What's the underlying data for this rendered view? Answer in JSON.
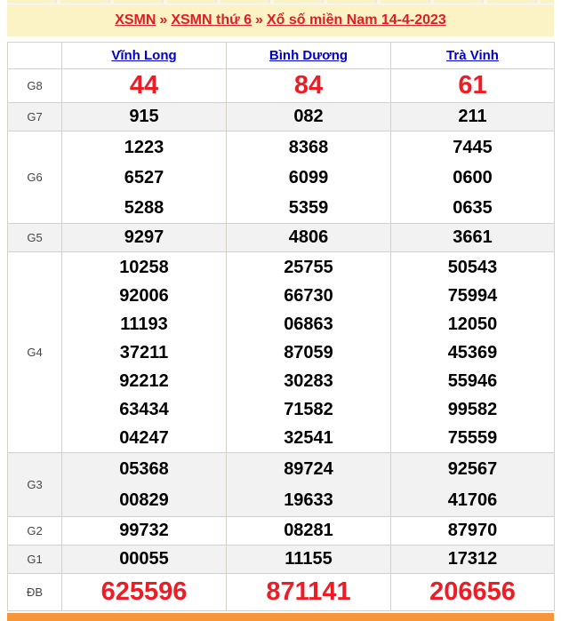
{
  "breadcrumb": {
    "separator": "»",
    "items": [
      {
        "label": "XSMN"
      },
      {
        "label": "XSMN thứ 6"
      },
      {
        "label": "Xổ số miền Nam 14-4-2023"
      }
    ]
  },
  "table": {
    "corner_label": "",
    "provinces": [
      "Vĩnh Long",
      "Bình Dương",
      "Trà Vinh"
    ],
    "rows": [
      {
        "prize": "G8",
        "highlight": true,
        "shaded": false,
        "values": [
          [
            "44"
          ],
          [
            "84"
          ],
          [
            "61"
          ]
        ]
      },
      {
        "prize": "G7",
        "highlight": false,
        "shaded": true,
        "values": [
          [
            "915"
          ],
          [
            "082"
          ],
          [
            "211"
          ]
        ]
      },
      {
        "prize": "G6",
        "highlight": false,
        "shaded": false,
        "values": [
          [
            "1223",
            "6527",
            "5288"
          ],
          [
            "8368",
            "6099",
            "5359"
          ],
          [
            "7445",
            "0600",
            "0635"
          ]
        ]
      },
      {
        "prize": "G5",
        "highlight": false,
        "shaded": true,
        "values": [
          [
            "9297"
          ],
          [
            "4806"
          ],
          [
            "3661"
          ]
        ]
      },
      {
        "prize": "G4",
        "highlight": false,
        "shaded": false,
        "values": [
          [
            "10258",
            "92006",
            "11193",
            "37211",
            "92212",
            "63434",
            "04247"
          ],
          [
            "25755",
            "66730",
            "06863",
            "87059",
            "30283",
            "71582",
            "32541"
          ],
          [
            "50543",
            "75994",
            "12050",
            "45369",
            "55946",
            "99582",
            "75559"
          ]
        ]
      },
      {
        "prize": "G3",
        "highlight": false,
        "shaded": true,
        "values": [
          [
            "05368",
            "00829"
          ],
          [
            "89724",
            "19633"
          ],
          [
            "92567",
            "41706"
          ]
        ]
      },
      {
        "prize": "G2",
        "highlight": false,
        "shaded": false,
        "values": [
          [
            "99732"
          ],
          [
            "08281"
          ],
          [
            "87970"
          ]
        ]
      },
      {
        "prize": "G1",
        "highlight": false,
        "shaded": true,
        "values": [
          [
            "00055"
          ],
          [
            "11155"
          ],
          [
            "17312"
          ]
        ]
      },
      {
        "prize": "ĐB",
        "highlight": true,
        "shaded": false,
        "values": [
          [
            "625596"
          ],
          [
            "871141"
          ],
          [
            "206656"
          ]
        ]
      }
    ]
  },
  "colors": {
    "header_background": "#fbf2c6",
    "breadcrumb_red": "#e11d24",
    "highlight_red": "#ee1c25",
    "link_blue": "#0000cc",
    "shaded_row": "#f2f2f2",
    "border": "#d5d1c7",
    "bottom_bar_orange": "#f7953b"
  }
}
